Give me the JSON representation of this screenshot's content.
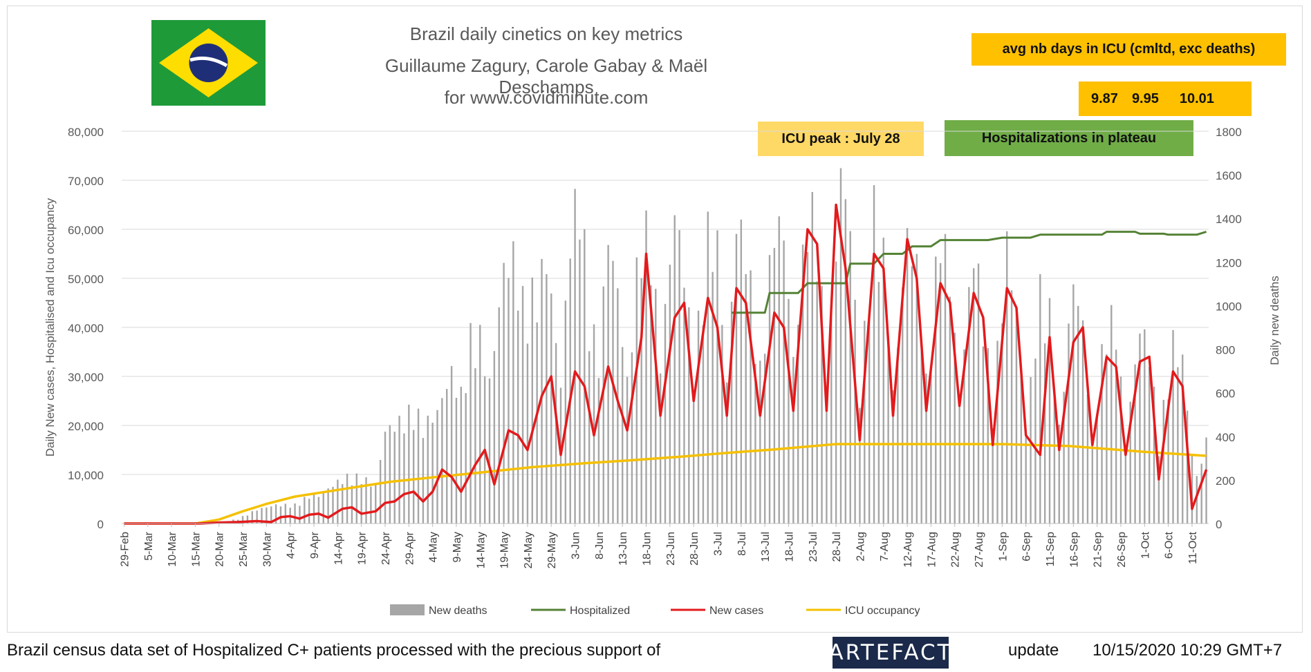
{
  "header": {
    "title_lines": [
      "Brazil daily cinetics on key metrics",
      "Guillaume Zagury, Carole Gabay & Maël Deschamps",
      "for www.covidminute.com"
    ]
  },
  "flag": {
    "icon": "brazil-flag-icon",
    "colors": {
      "green": "#1f9a39",
      "yellow": "#fedd00",
      "blue": "#1f2f77"
    }
  },
  "annotations": {
    "icu_days_label": "avg nb days in ICU (cmltd, exc deaths)",
    "icu_days_values": [
      "9.87",
      "9.95",
      "10.01"
    ],
    "icu_peak": "ICU peak : July 28",
    "hosp_plateau": "Hospitalizations in plateau"
  },
  "colors": {
    "deaths": "#a6a6a6",
    "hospitalized": "#548235",
    "new_cases": "#e31a1c",
    "icu": "#f5c000",
    "annotation_yellow": "#ffc000",
    "annotation_light": "#ffd966",
    "annotation_green": "#70ad47",
    "grid": "#d9d9d9"
  },
  "chart_data": {
    "type": "bar",
    "title": "Brazil daily cinetics on key metrics",
    "ylabel": "Daily New cases, Hospitalised and Icu occupancy",
    "y2label": "Daily new deaths",
    "ylim": [
      0,
      80000
    ],
    "y2lim": [
      0,
      1800
    ],
    "yticks": [
      "0",
      "10,000",
      "20,000",
      "30,000",
      "40,000",
      "50,000",
      "60,000",
      "70,000",
      "80,000"
    ],
    "y2ticks": [
      "0",
      "200",
      "400",
      "600",
      "800",
      "1000",
      "1200",
      "1400",
      "1600",
      "1800"
    ],
    "x_start": "2020-02-29",
    "x_end": "2020-10-14",
    "x_tick_labels": [
      "29-Feb",
      "5-Mar",
      "10-Mar",
      "15-Mar",
      "20-Mar",
      "25-Mar",
      "30-Mar",
      "4-Apr",
      "9-Apr",
      "14-Apr",
      "19-Apr",
      "24-Apr",
      "29-Apr",
      "4-May",
      "9-May",
      "14-May",
      "19-May",
      "24-May",
      "29-May",
      "3-Jun",
      "8-Jun",
      "13-Jun",
      "18-Jun",
      "23-Jun",
      "28-Jun",
      "3-Jul",
      "8-Jul",
      "13-Jul",
      "18-Jul",
      "23-Jul",
      "28-Jul",
      "2-Aug",
      "7-Aug",
      "12-Aug",
      "17-Aug",
      "22-Aug",
      "27-Aug",
      "1-Sep",
      "6-Sep",
      "11-Sep",
      "16-Sep",
      "21-Sep",
      "26-Sep",
      "1-Oct",
      "6-Oct",
      "11-Oct"
    ],
    "legend_position": "bottom",
    "legend": [
      "New deaths",
      "Hospitalized",
      "New cases",
      "ICU occupancy"
    ],
    "series": [
      {
        "name": "New deaths",
        "type": "bar",
        "axis": "right",
        "points": [
          [
            "2020-02-29",
            0
          ],
          [
            "2020-03-16",
            0
          ],
          [
            "2020-03-20",
            3
          ],
          [
            "2020-03-24",
            20
          ],
          [
            "2020-03-28",
            60
          ],
          [
            "2020-04-01",
            80
          ],
          [
            "2020-04-05",
            80
          ],
          [
            "2020-04-08",
            120
          ],
          [
            "2020-04-10",
            120
          ],
          [
            "2020-04-14",
            180
          ],
          [
            "2020-04-16",
            200
          ],
          [
            "2020-04-19",
            200
          ],
          [
            "2020-04-22",
            160
          ],
          [
            "2020-04-24",
            400
          ],
          [
            "2020-04-28",
            450
          ],
          [
            "2020-04-30",
            500
          ],
          [
            "2020-05-02",
            420
          ],
          [
            "2020-05-05",
            480
          ],
          [
            "2020-05-07",
            600
          ],
          [
            "2020-05-08",
            650
          ],
          [
            "2020-05-10",
            550
          ],
          [
            "2020-05-12",
            800
          ],
          [
            "2020-05-14",
            800
          ],
          [
            "2020-05-16",
            600
          ],
          [
            "2020-05-19",
            1100
          ],
          [
            "2020-05-21",
            1150
          ],
          [
            "2020-05-23",
            950
          ],
          [
            "2020-05-26",
            1000
          ],
          [
            "2020-05-28",
            1150
          ],
          [
            "2020-05-31",
            600
          ],
          [
            "2020-06-02",
            1250
          ],
          [
            "2020-06-04",
            1450
          ],
          [
            "2020-06-06",
            900
          ],
          [
            "2020-06-08",
            700
          ],
          [
            "2020-06-10",
            1250
          ],
          [
            "2020-06-12",
            1000
          ],
          [
            "2020-06-14",
            600
          ],
          [
            "2020-06-17",
            1300
          ],
          [
            "2020-06-19",
            1200
          ],
          [
            "2020-06-21",
            700
          ],
          [
            "2020-06-24",
            1350
          ],
          [
            "2020-06-26",
            1100
          ],
          [
            "2020-06-28",
            650
          ],
          [
            "2020-07-01",
            1250
          ],
          [
            "2020-07-03",
            1200
          ],
          [
            "2020-07-05",
            600
          ],
          [
            "2020-07-07",
            1300
          ],
          [
            "2020-07-09",
            1200
          ],
          [
            "2020-07-12",
            650
          ],
          [
            "2020-07-15",
            1300
          ],
          [
            "2020-07-17",
            1250
          ],
          [
            "2020-07-19",
            700
          ],
          [
            "2020-07-22",
            1350
          ],
          [
            "2020-07-24",
            1300
          ],
          [
            "2020-07-26",
            600
          ],
          [
            "2020-07-29",
            1500
          ],
          [
            "2020-07-31",
            1300
          ],
          [
            "2020-08-02",
            550
          ],
          [
            "2020-08-05",
            1350
          ],
          [
            "2020-08-07",
            1150
          ],
          [
            "2020-08-09",
            550
          ],
          [
            "2020-08-12",
            1250
          ],
          [
            "2020-08-14",
            1100
          ],
          [
            "2020-08-16",
            600
          ],
          [
            "2020-08-19",
            1300
          ],
          [
            "2020-08-21",
            1050
          ],
          [
            "2020-08-23",
            550
          ],
          [
            "2020-08-26",
            1200
          ],
          [
            "2020-08-28",
            900
          ],
          [
            "2020-08-30",
            500
          ],
          [
            "2020-09-02",
            1200
          ],
          [
            "2020-09-04",
            900
          ],
          [
            "2020-09-06",
            400
          ],
          [
            "2020-09-09",
            1000
          ],
          [
            "2020-09-11",
            900
          ],
          [
            "2020-09-13",
            400
          ],
          [
            "2020-09-16",
            1050
          ],
          [
            "2020-09-18",
            850
          ],
          [
            "2020-09-20",
            350
          ],
          [
            "2020-09-23",
            900
          ],
          [
            "2020-09-25",
            850
          ],
          [
            "2020-09-27",
            350
          ],
          [
            "2020-09-30",
            850
          ],
          [
            "2020-10-02",
            750
          ],
          [
            "2020-10-04",
            350
          ],
          [
            "2020-10-07",
            780
          ],
          [
            "2020-10-09",
            700
          ],
          [
            "2020-10-11",
            300
          ],
          [
            "2020-10-12",
            200
          ],
          [
            "2020-10-14",
            350
          ]
        ]
      },
      {
        "name": "Hospitalized",
        "type": "line",
        "axis": "left",
        "points": [
          [
            "2020-07-06",
            43000
          ],
          [
            "2020-07-13",
            43000
          ],
          [
            "2020-07-14",
            47000
          ],
          [
            "2020-07-20",
            47000
          ],
          [
            "2020-07-22",
            49000
          ],
          [
            "2020-07-30",
            49000
          ],
          [
            "2020-07-31",
            53000
          ],
          [
            "2020-08-05",
            53000
          ],
          [
            "2020-08-07",
            55000
          ],
          [
            "2020-08-11",
            55000
          ],
          [
            "2020-08-13",
            56500
          ],
          [
            "2020-08-17",
            56500
          ],
          [
            "2020-08-19",
            57800
          ],
          [
            "2020-08-29",
            57800
          ],
          [
            "2020-09-01",
            58300
          ],
          [
            "2020-09-07",
            58300
          ],
          [
            "2020-09-09",
            58900
          ],
          [
            "2020-09-22",
            58900
          ],
          [
            "2020-09-23",
            59500
          ],
          [
            "2020-09-29",
            59500
          ],
          [
            "2020-09-30",
            59100
          ],
          [
            "2020-10-05",
            59100
          ],
          [
            "2020-10-06",
            58900
          ],
          [
            "2020-10-12",
            58900
          ],
          [
            "2020-10-14",
            59500
          ]
        ]
      },
      {
        "name": "New cases",
        "type": "line",
        "axis": "left",
        "points": [
          [
            "2020-02-29",
            0
          ],
          [
            "2020-03-16",
            0
          ],
          [
            "2020-03-20",
            200
          ],
          [
            "2020-03-24",
            300
          ],
          [
            "2020-03-28",
            500
          ],
          [
            "2020-03-31",
            300
          ],
          [
            "2020-04-02",
            1300
          ],
          [
            "2020-04-04",
            1500
          ],
          [
            "2020-04-06",
            1000
          ],
          [
            "2020-04-08",
            1800
          ],
          [
            "2020-04-10",
            2000
          ],
          [
            "2020-04-12",
            1200
          ],
          [
            "2020-04-15",
            3000
          ],
          [
            "2020-04-17",
            3300
          ],
          [
            "2020-04-19",
            2000
          ],
          [
            "2020-04-22",
            2500
          ],
          [
            "2020-04-24",
            4200
          ],
          [
            "2020-04-26",
            4500
          ],
          [
            "2020-04-28",
            6000
          ],
          [
            "2020-04-30",
            6500
          ],
          [
            "2020-05-02",
            4500
          ],
          [
            "2020-05-04",
            6500
          ],
          [
            "2020-05-06",
            11000
          ],
          [
            "2020-05-08",
            9500
          ],
          [
            "2020-05-10",
            6500
          ],
          [
            "2020-05-13",
            12000
          ],
          [
            "2020-05-15",
            15000
          ],
          [
            "2020-05-17",
            8000
          ],
          [
            "2020-05-20",
            19000
          ],
          [
            "2020-05-22",
            18000
          ],
          [
            "2020-05-24",
            15000
          ],
          [
            "2020-05-27",
            26000
          ],
          [
            "2020-05-29",
            30000
          ],
          [
            "2020-05-31",
            14000
          ],
          [
            "2020-06-03",
            31000
          ],
          [
            "2020-06-05",
            28000
          ],
          [
            "2020-06-07",
            18000
          ],
          [
            "2020-06-10",
            32000
          ],
          [
            "2020-06-12",
            25000
          ],
          [
            "2020-06-14",
            19000
          ],
          [
            "2020-06-17",
            38000
          ],
          [
            "2020-06-18",
            55000
          ],
          [
            "2020-06-21",
            22000
          ],
          [
            "2020-06-24",
            42000
          ],
          [
            "2020-06-26",
            45000
          ],
          [
            "2020-06-28",
            25000
          ],
          [
            "2020-07-01",
            46000
          ],
          [
            "2020-07-03",
            40000
          ],
          [
            "2020-07-05",
            22000
          ],
          [
            "2020-07-07",
            48000
          ],
          [
            "2020-07-09",
            45000
          ],
          [
            "2020-07-12",
            22000
          ],
          [
            "2020-07-15",
            43000
          ],
          [
            "2020-07-17",
            40000
          ],
          [
            "2020-07-19",
            23000
          ],
          [
            "2020-07-22",
            60000
          ],
          [
            "2020-07-24",
            57000
          ],
          [
            "2020-07-26",
            23000
          ],
          [
            "2020-07-28",
            65000
          ],
          [
            "2020-07-30",
            52000
          ],
          [
            "2020-08-02",
            17000
          ],
          [
            "2020-08-05",
            55000
          ],
          [
            "2020-08-07",
            52000
          ],
          [
            "2020-08-09",
            22000
          ],
          [
            "2020-08-12",
            58000
          ],
          [
            "2020-08-14",
            50000
          ],
          [
            "2020-08-16",
            23000
          ],
          [
            "2020-08-19",
            49000
          ],
          [
            "2020-08-21",
            45000
          ],
          [
            "2020-08-23",
            24000
          ],
          [
            "2020-08-26",
            47000
          ],
          [
            "2020-08-28",
            42000
          ],
          [
            "2020-08-30",
            16000
          ],
          [
            "2020-09-02",
            48000
          ],
          [
            "2020-09-04",
            44000
          ],
          [
            "2020-09-06",
            18000
          ],
          [
            "2020-09-09",
            14000
          ],
          [
            "2020-09-11",
            38000
          ],
          [
            "2020-09-13",
            15000
          ],
          [
            "2020-09-16",
            37000
          ],
          [
            "2020-09-18",
            40000
          ],
          [
            "2020-09-20",
            16000
          ],
          [
            "2020-09-23",
            34000
          ],
          [
            "2020-09-25",
            32000
          ],
          [
            "2020-09-27",
            14000
          ],
          [
            "2020-09-30",
            33000
          ],
          [
            "2020-10-02",
            34000
          ],
          [
            "2020-10-04",
            9000
          ],
          [
            "2020-10-07",
            31000
          ],
          [
            "2020-10-09",
            28000
          ],
          [
            "2020-10-11",
            3000
          ],
          [
            "2020-10-14",
            11000
          ]
        ]
      },
      {
        "name": "ICU occupancy",
        "type": "line",
        "axis": "left",
        "points": [
          [
            "2020-02-29",
            0
          ],
          [
            "2020-03-15",
            0
          ],
          [
            "2020-03-20",
            800
          ],
          [
            "2020-03-25",
            2500
          ],
          [
            "2020-03-30",
            4000
          ],
          [
            "2020-04-05",
            5500
          ],
          [
            "2020-04-15",
            7000
          ],
          [
            "2020-04-25",
            8500
          ],
          [
            "2020-05-05",
            9500
          ],
          [
            "2020-05-15",
            10500
          ],
          [
            "2020-05-25",
            11500
          ],
          [
            "2020-06-05",
            12300
          ],
          [
            "2020-06-15",
            12900
          ],
          [
            "2020-06-25",
            13600
          ],
          [
            "2020-07-05",
            14400
          ],
          [
            "2020-07-15",
            15100
          ],
          [
            "2020-07-28",
            16200
          ],
          [
            "2020-08-15",
            16200
          ],
          [
            "2020-09-01",
            16200
          ],
          [
            "2020-09-15",
            15800
          ],
          [
            "2020-10-01",
            14600
          ],
          [
            "2020-10-14",
            13800
          ]
        ]
      }
    ]
  },
  "footer": {
    "text": "Brazil census data set of Hospitalized C+ patients processed with the precious support of",
    "logo_text": "ARTEFACT",
    "update_label": "update",
    "update_time": "10/15/2020 10:29  GMT+7"
  }
}
